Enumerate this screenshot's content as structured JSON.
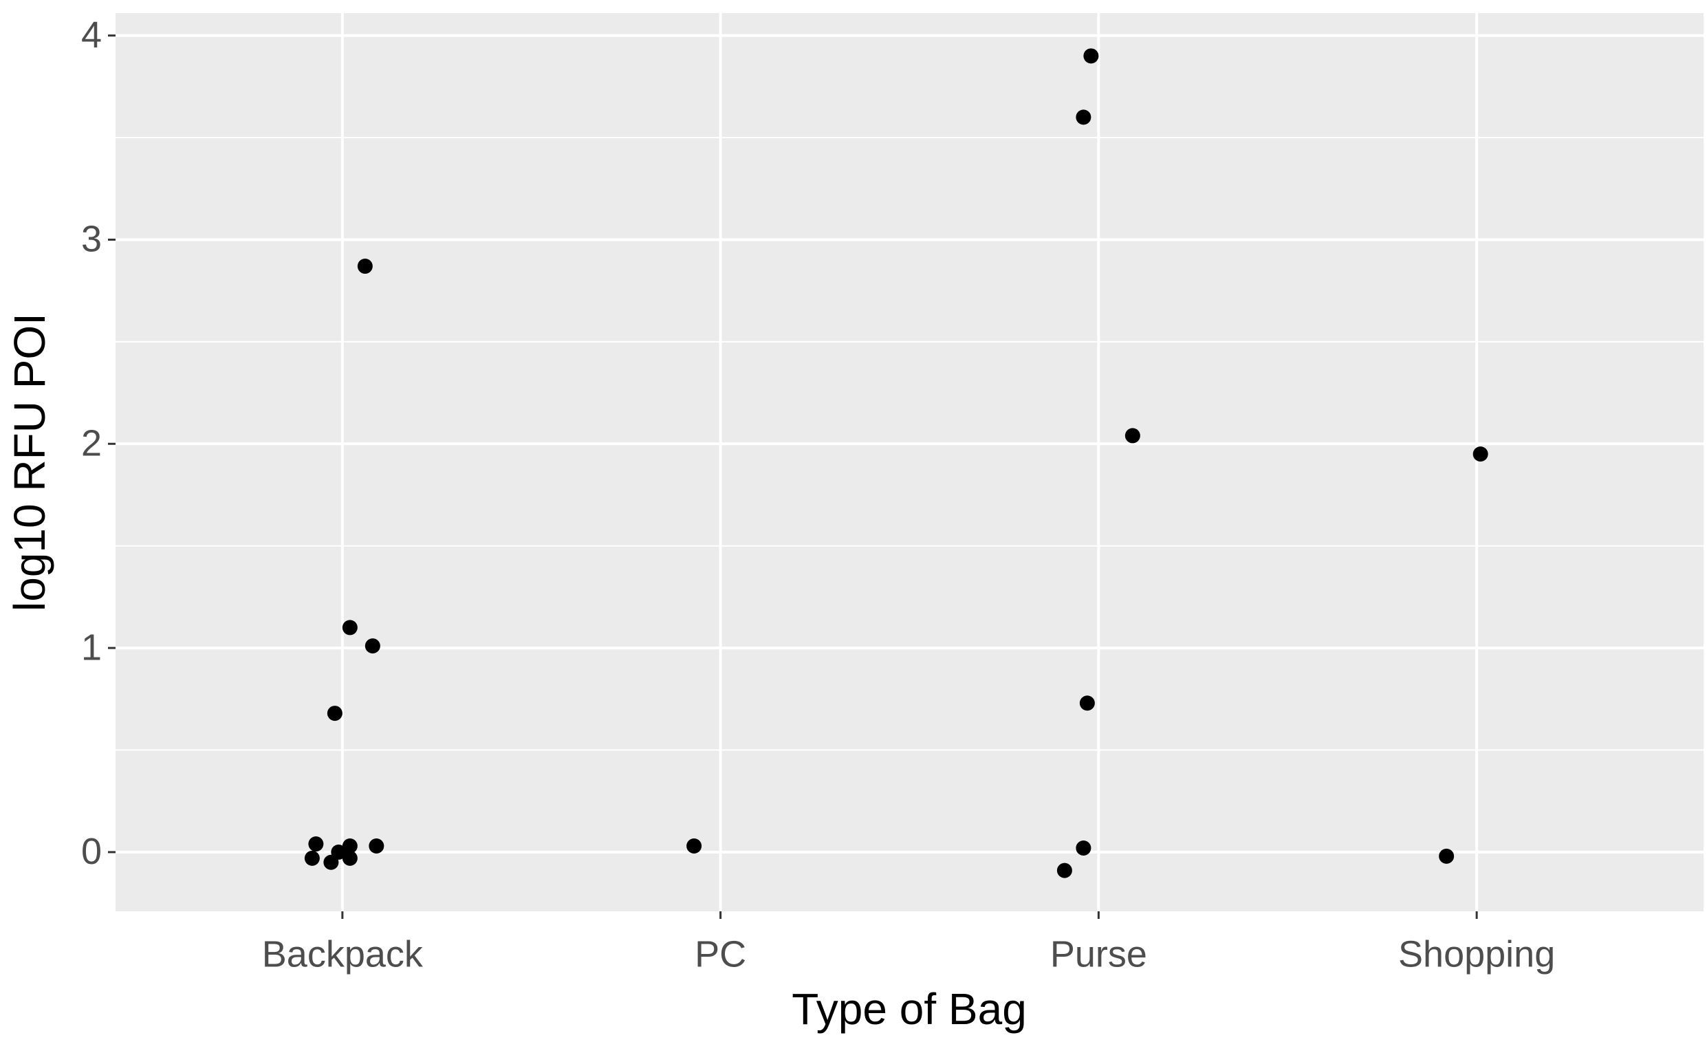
{
  "chart_data": {
    "type": "scatter",
    "x_label": "Type of Bag",
    "y_label": "log10 RFU POI",
    "xlim": [
      0.4,
      4.6
    ],
    "ylim": [
      -0.29,
      4.11
    ],
    "xticks": [
      {
        "value": 1,
        "label": "Backpack"
      },
      {
        "value": 2,
        "label": "PC"
      },
      {
        "value": 3,
        "label": "Purse"
      },
      {
        "value": 4,
        "label": "Shopping"
      }
    ],
    "yticks": [
      0,
      1,
      2,
      3,
      4
    ],
    "grid": true,
    "minor_grid": true,
    "panel_color": "#ebebeb",
    "series": [
      {
        "color": "#000000",
        "x": [
          1.06,
          1.02,
          1.08,
          0.98,
          0.93,
          0.92,
          0.97,
          0.99,
          1.02,
          1.02,
          1.09,
          1.93,
          2.98,
          2.96,
          3.09,
          2.97,
          2.96,
          2.91,
          4.01,
          3.92
        ],
        "values": [
          2.87,
          1.1,
          1.01,
          0.68,
          0.04,
          -0.03,
          -0.05,
          0.0,
          0.03,
          -0.03,
          0.03,
          0.03,
          3.9,
          3.6,
          2.04,
          0.73,
          0.02,
          -0.09,
          1.95,
          -0.02
        ]
      }
    ]
  }
}
